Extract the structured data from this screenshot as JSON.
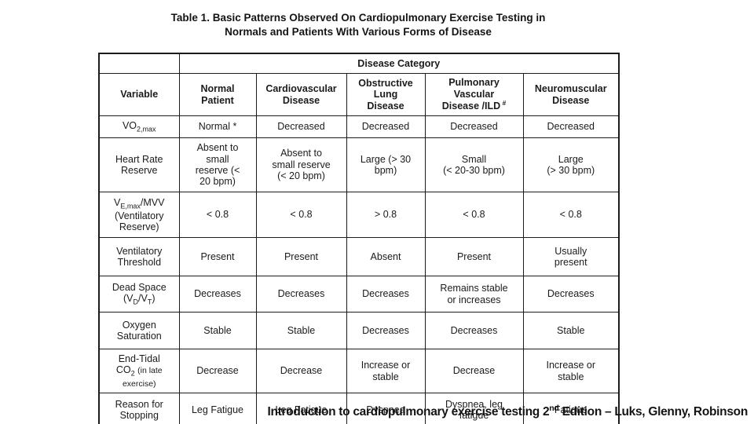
{
  "title": {
    "line1": "Table 1. Basic Patterns Observed On Cardiopulmonary Exercise Testing in",
    "line2": "Normals and Patients With Various Forms of Disease"
  },
  "table": {
    "disease_category_label": "Disease Category",
    "columns": [
      "Variable",
      "Normal<br>Patient",
      "Cardiovascular<br>Disease",
      "Obstructive<br>Lung<br>Disease",
      "Pulmonary<br>Vascular<br>Disease /ILD<sup> #</sup>",
      "Neuromuscular<br>Disease"
    ],
    "rows": [
      {
        "variable": "VO<sub>2,max</sub>",
        "values": [
          "Normal *",
          "Decreased",
          "Decreased",
          "Decreased",
          "Decreased"
        ]
      },
      {
        "variable": "Heart Rate<br>Reserve",
        "values": [
          "Absent to<br>small<br>reserve (&lt;<br>20 bpm)",
          "Absent to<br>small reserve<br>(&lt; 20 bpm)",
          "Large (&gt; 30<br>bpm)",
          "Small<br>(&lt; 20-30 bpm)",
          "Large<br>(&gt; 30 bpm)"
        ]
      },
      {
        "variable": "V<sub>E,max</sub>/MVV<br>(Ventilatory<br>Reserve)",
        "values": [
          "&lt; 0.8",
          "&lt; 0.8",
          "&gt; 0.8",
          "&lt; 0.8",
          "&lt; 0.8"
        ]
      },
      {
        "variable": "Ventilatory<br>Threshold",
        "values": [
          "Present",
          "Present",
          "Absent",
          "Present",
          "Usually<br>present"
        ]
      },
      {
        "variable": "Dead Space<br>(V<sub>D</sub>/V<sub>T</sub>)",
        "values": [
          "Decreases",
          "Decreases",
          "Decreases",
          "Remains stable<br>or increases",
          "Decreases"
        ]
      },
      {
        "variable": "Oxygen<br>Saturation",
        "values": [
          "Stable",
          "Stable",
          "Decreases",
          "Decreases",
          "Stable"
        ]
      },
      {
        "variable": "End-Tidal<br>CO<sub>2</sub> <span class=\"sm\">(in late</span><br><span class=\"sm\">exercise)</span>",
        "values": [
          "Decrease",
          "Decrease",
          "Increase or<br>stable",
          "Decrease",
          "Increase or<br>stable"
        ]
      },
      {
        "variable": "Reason for<br>Stopping",
        "values": [
          "Leg Fatigue",
          "Leg Fatigue",
          "Dyspnea",
          "Dyspnea, leg<br>fatigue",
          "Fatigue"
        ]
      }
    ]
  },
  "caption": {
    "text": "Introduction to cardiopulmonary exercise testing 2<sup>nd</sup> Edition – Luks, Glenny, Robinson"
  }
}
